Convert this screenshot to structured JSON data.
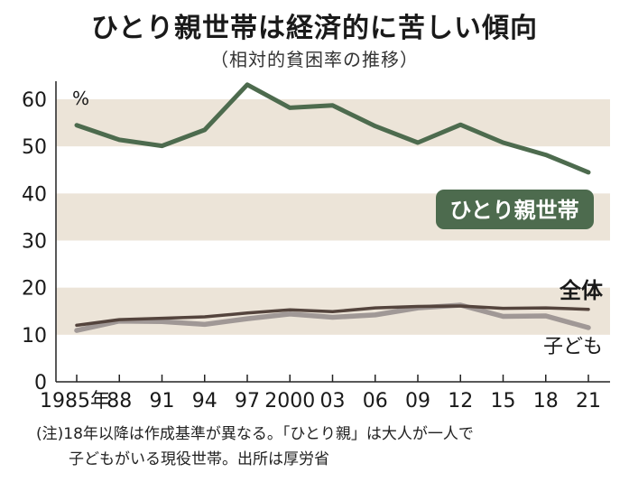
{
  "title": "ひとり親世帯は経済的に苦しい傾向",
  "subtitle": "（相対的貧困率の推移）",
  "notes": [
    "(注)18年以降は作成基準が異なる。「ひとり親」は大人が一人で",
    "子どもがいる現役世帯。出所は厚労省"
  ],
  "colors": {
    "band": "#ece4d8",
    "single_parent": "#4d6b4e",
    "all": "#54443d",
    "children": "#a09896",
    "label_box": "#4d6b4e"
  },
  "chart_data": {
    "type": "line",
    "ylabel": "%",
    "ylim": [
      0,
      65
    ],
    "yticks": [
      0,
      10,
      20,
      30,
      40,
      50,
      60
    ],
    "x": [
      1985,
      1988,
      1991,
      1994,
      1997,
      2000,
      2003,
      2006,
      2009,
      2012,
      2015,
      2018,
      2021
    ],
    "xtick_labels": [
      "1985年",
      "88",
      "91",
      "94",
      "97",
      "2000",
      "03",
      "06",
      "09",
      "12",
      "15",
      "18",
      "21"
    ],
    "shaded_bands": [
      [
        10,
        20
      ],
      [
        30,
        40
      ],
      [
        50,
        60
      ]
    ],
    "series": [
      {
        "name": "ひとり親世帯",
        "key": "single_parent",
        "values": [
          54.5,
          51.4,
          50.1,
          53.5,
          63.1,
          58.2,
          58.7,
          54.3,
          50.8,
          54.6,
          50.8,
          48.2,
          44.5
        ]
      },
      {
        "name": "全体",
        "key": "all",
        "values": [
          12.0,
          13.2,
          13.5,
          13.8,
          14.6,
          15.3,
          14.9,
          15.7,
          16.0,
          16.1,
          15.6,
          15.7,
          15.4
        ]
      },
      {
        "name": "子ども",
        "key": "children",
        "values": [
          10.9,
          12.9,
          12.8,
          12.2,
          13.4,
          14.4,
          13.7,
          14.2,
          15.7,
          16.3,
          13.9,
          14.0,
          11.5
        ]
      }
    ]
  }
}
